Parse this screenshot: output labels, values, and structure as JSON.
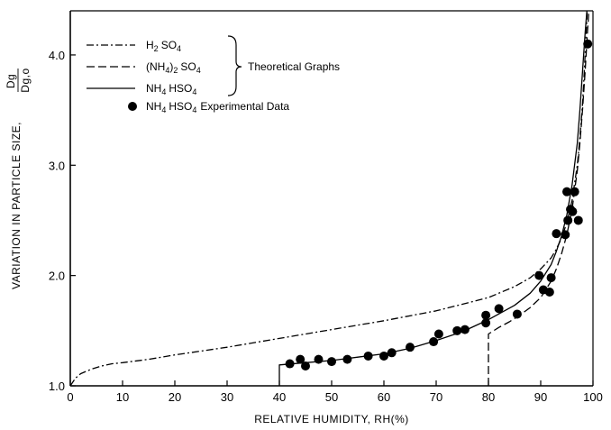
{
  "chart_data": {
    "type": "line",
    "xlabel": "RELATIVE HUMIDITY, RH(%)",
    "ylabel": "VARIATION IN PARTICLE SIZE,",
    "ylabel_fraction": {
      "num": "Dg",
      "den": "Dg,o"
    },
    "xlim": [
      0,
      100
    ],
    "ylim": [
      1.0,
      4.4
    ],
    "x_ticks": [
      0,
      10,
      20,
      30,
      40,
      50,
      60,
      70,
      80,
      90,
      100
    ],
    "x_tick_labels": [
      "0",
      "10",
      "20",
      "30",
      "40",
      "50",
      "60",
      "70",
      "80",
      "90",
      "100"
    ],
    "y_ticks": [
      1.0,
      2.0,
      3.0,
      4.0
    ],
    "y_tick_labels": [
      "1.0",
      "2.0",
      "3.0",
      "4.0"
    ],
    "grid": false,
    "legend_position": "top-left",
    "brace_label": "Theoretical Graphs",
    "series": [
      {
        "name": "H2SO4",
        "label_main": "H",
        "label_sub1": "2",
        "label_tail": "SO",
        "label_sub2": "4",
        "style": "dashdot",
        "x": [
          0,
          1,
          2,
          4,
          6,
          8,
          10,
          15,
          20,
          30,
          40,
          50,
          60,
          70,
          75,
          80,
          85,
          88,
          90,
          92,
          93,
          94,
          95,
          96,
          97,
          97.5,
          98,
          98.5,
          99
        ],
        "y": [
          1.0,
          1.07,
          1.11,
          1.15,
          1.18,
          1.2,
          1.21,
          1.24,
          1.28,
          1.35,
          1.43,
          1.51,
          1.59,
          1.68,
          1.74,
          1.8,
          1.9,
          1.98,
          2.06,
          2.16,
          2.24,
          2.34,
          2.48,
          2.68,
          3.0,
          3.25,
          3.55,
          4.0,
          4.5
        ]
      },
      {
        "name": "(NH4)2SO4",
        "label_main": "(NH",
        "label_sub1": "4",
        "label_tail": ")",
        "label_sub2": "2",
        "label_tail2": "SO",
        "label_sub3": "4",
        "style": "dashed",
        "x": [
          80,
          80,
          82,
          84,
          86,
          88,
          90,
          92,
          93,
          94,
          95,
          96,
          97,
          97.5,
          98,
          98.5,
          99,
          99.5
        ],
        "y": [
          1.0,
          1.47,
          1.53,
          1.58,
          1.64,
          1.71,
          1.8,
          1.95,
          2.06,
          2.2,
          2.37,
          2.6,
          2.95,
          3.2,
          3.5,
          3.85,
          4.25,
          4.6
        ]
      },
      {
        "name": "NH4HSO4",
        "label_main": "NH",
        "label_sub1": "4",
        "label_tail": "HSO",
        "label_sub2": "4",
        "style": "solid",
        "x": [
          40,
          40,
          45,
          50,
          55,
          60,
          65,
          70,
          75,
          80,
          85,
          88,
          90,
          92,
          93,
          94,
          95,
          96,
          97,
          97.5,
          98,
          98.5,
          99
        ],
        "y": [
          1.0,
          1.19,
          1.21,
          1.23,
          1.26,
          1.29,
          1.34,
          1.41,
          1.49,
          1.6,
          1.73,
          1.84,
          1.95,
          2.1,
          2.22,
          2.36,
          2.55,
          2.82,
          3.2,
          3.5,
          3.85,
          4.2,
          4.5
        ]
      },
      {
        "name": "NH4HSO4 Experimental Data",
        "label_main": "NH",
        "label_sub1": "4",
        "label_tail": "HSO",
        "label_sub2": "4",
        "label_tail2": "Experimental Data",
        "style": "points",
        "x": [
          42,
          44,
          45,
          47.5,
          50,
          53,
          57,
          60,
          61.5,
          65,
          69.5,
          70.5,
          74,
          75.5,
          79.5,
          79.5,
          82,
          85.5,
          89.7,
          90.5,
          91.7,
          92,
          93,
          94.7,
          95,
          95.2,
          95.7,
          96.1,
          96.5,
          97.2,
          99
        ],
        "y": [
          1.2,
          1.24,
          1.18,
          1.24,
          1.22,
          1.24,
          1.27,
          1.27,
          1.3,
          1.35,
          1.4,
          1.47,
          1.5,
          1.51,
          1.57,
          1.64,
          1.7,
          1.65,
          2.0,
          1.87,
          1.85,
          1.98,
          2.38,
          2.37,
          2.76,
          2.5,
          2.6,
          2.58,
          2.76,
          2.5,
          4.1
        ]
      }
    ]
  }
}
